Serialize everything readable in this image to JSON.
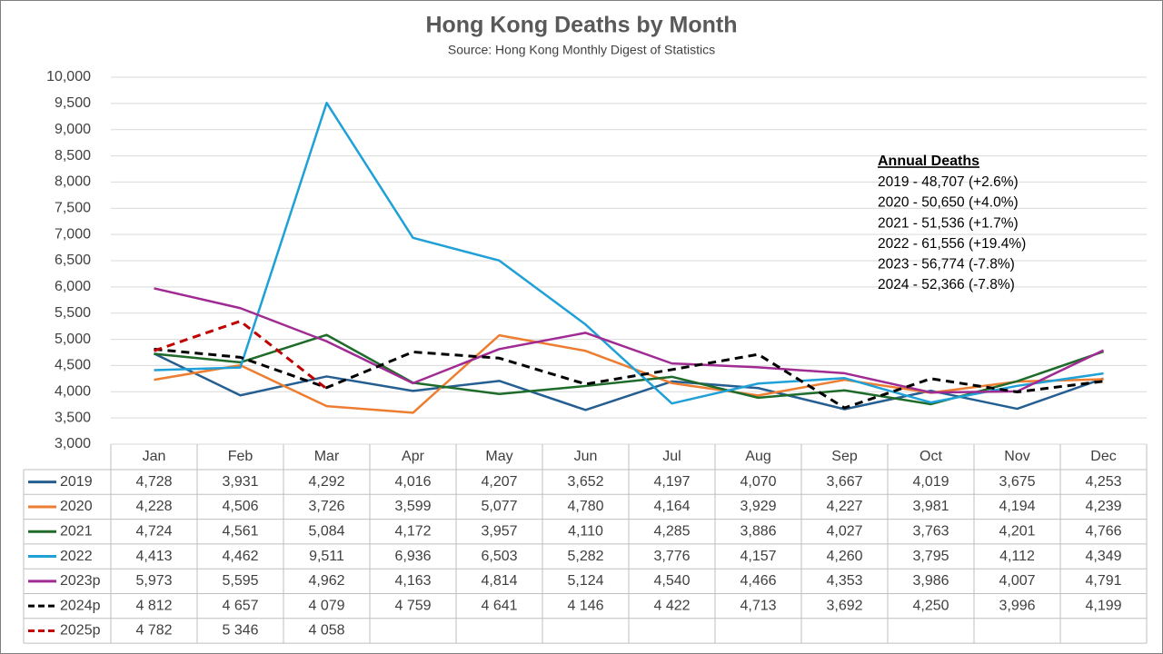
{
  "chart_data": {
    "type": "line",
    "title": "Hong Kong Deaths by Month",
    "subtitle": "Source: Hong Kong Monthly Digest of Statistics",
    "categories": [
      "Jan",
      "Feb",
      "Mar",
      "Apr",
      "May",
      "Jun",
      "Jul",
      "Aug",
      "Sep",
      "Oct",
      "Nov",
      "Dec"
    ],
    "ylim": [
      3000,
      10000
    ],
    "yticks": [
      {
        "value": 3000,
        "label": "3,000"
      },
      {
        "value": 3500,
        "label": "3,500"
      },
      {
        "value": 4000,
        "label": "4,000"
      },
      {
        "value": 4500,
        "label": "4,500"
      },
      {
        "value": 5000,
        "label": "5,000"
      },
      {
        "value": 5500,
        "label": "5,500"
      },
      {
        "value": 6000,
        "label": "6,000"
      },
      {
        "value": 6500,
        "label": "6,500"
      },
      {
        "value": 7000,
        "label": "7,000"
      },
      {
        "value": 7500,
        "label": "7,500"
      },
      {
        "value": 8000,
        "label": "8,000"
      },
      {
        "value": 8500,
        "label": "8,500"
      },
      {
        "value": 9000,
        "label": "9,000"
      },
      {
        "value": 9500,
        "label": "9,500"
      },
      {
        "value": 10000,
        "label": "10,000"
      }
    ],
    "grid": true,
    "series": [
      {
        "name": "2019",
        "color": "#255e91",
        "dashed": false,
        "values": [
          4728,
          3931,
          4292,
          4016,
          4207,
          3652,
          4197,
          4070,
          3667,
          4019,
          3675,
          4253
        ],
        "value_labels": [
          "4,728",
          "3,931",
          "4,292",
          "4,016",
          "4,207",
          "3,652",
          "4,197",
          "4,070",
          "3,667",
          "4,019",
          "3,675",
          "4,253"
        ]
      },
      {
        "name": "2020",
        "color": "#ed7d31",
        "dashed": false,
        "values": [
          4228,
          4506,
          3726,
          3599,
          5077,
          4780,
          4164,
          3929,
          4227,
          3981,
          4194,
          4239
        ],
        "value_labels": [
          "4,228",
          "4,506",
          "3,726",
          "3,599",
          "5,077",
          "4,780",
          "4,164",
          "3,929",
          "4,227",
          "3,981",
          "4,194",
          "4,239"
        ]
      },
      {
        "name": "2021",
        "color": "#1e6b2a",
        "dashed": false,
        "values": [
          4724,
          4561,
          5084,
          4172,
          3957,
          4110,
          4285,
          3886,
          4027,
          3763,
          4201,
          4766
        ],
        "value_labels": [
          "4,724",
          "4,561",
          "5,084",
          "4,172",
          "3,957",
          "4,110",
          "4,285",
          "3,886",
          "4,027",
          "3,763",
          "4,201",
          "4,766"
        ]
      },
      {
        "name": "2022",
        "color": "#1fa0d6",
        "dashed": false,
        "values": [
          4413,
          4462,
          9511,
          6936,
          6503,
          5282,
          3776,
          4157,
          4260,
          3795,
          4112,
          4349
        ],
        "value_labels": [
          "4,413",
          "4,462",
          "9,511",
          "6,936",
          "6,503",
          "5,282",
          "3,776",
          "4,157",
          "4,260",
          "3,795",
          "4,112",
          "4,349"
        ]
      },
      {
        "name": "2023p",
        "color": "#a02b93",
        "dashed": false,
        "values": [
          5973,
          5595,
          4962,
          4163,
          4814,
          5124,
          4540,
          4466,
          4353,
          3986,
          4007,
          4791
        ],
        "value_labels": [
          "5,973",
          "5,595",
          "4,962",
          "4,163",
          "4,814",
          "5,124",
          "4,540",
          "4,466",
          "4,353",
          "3,986",
          "4,007",
          "4,791"
        ]
      },
      {
        "name": "2024p",
        "color": "#000000",
        "dashed": true,
        "values": [
          4812,
          4657,
          4079,
          4759,
          4641,
          4146,
          4422,
          4713,
          3692,
          4250,
          3996,
          4199
        ],
        "value_labels": [
          "4 812",
          "4 657",
          "4 079",
          "4 759",
          "4 641",
          "4 146",
          "4 422",
          "4,713",
          "3,692",
          "4,250",
          "3,996",
          "4,199"
        ]
      },
      {
        "name": "2025p",
        "color": "#c00000",
        "dashed": true,
        "values": [
          4782,
          5346,
          4058,
          null,
          null,
          null,
          null,
          null,
          null,
          null,
          null,
          null
        ],
        "value_labels": [
          "4 782",
          "5 346",
          "4 058",
          null,
          null,
          null,
          null,
          null,
          null,
          null,
          null,
          null
        ]
      }
    ],
    "annotation": {
      "title": "Annual Deaths",
      "lines": [
        "2019 - 48,707 (+2.6%)",
        "2020 - 50,650 (+4.0%)",
        "2021 - 51,536 (+1.7%)",
        "2022 - 61,556 (+19.4%)",
        "2023 - 56,774 (-7.8%)",
        "2024 - 52,366 (-7.8%)"
      ]
    }
  }
}
